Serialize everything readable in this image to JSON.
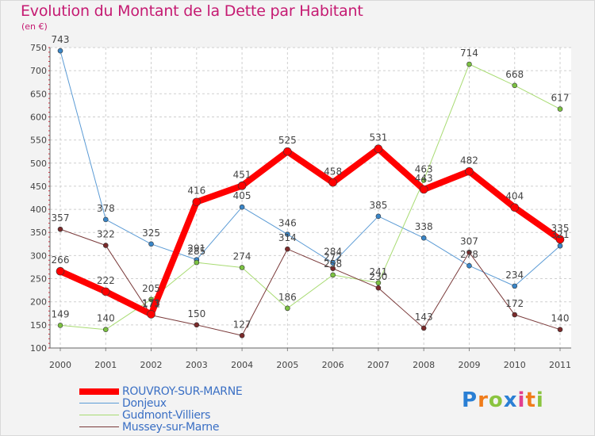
{
  "header": {
    "title": "Evolution du Montant de la Dette par Habitant",
    "unit": "(en €)"
  },
  "brand": {
    "text": "Proxiti",
    "colors": [
      "#2a7fd4",
      "#f07c1a",
      "#8ac43f",
      "#2a7fd4",
      "#e23f8f",
      "#f07c1a",
      "#8ac43f"
    ]
  },
  "chart_data": {
    "type": "line",
    "title": "Evolution du Montant de la Dette par Habitant",
    "ylabel": "(en €)",
    "xlabel": "",
    "ylim": [
      100,
      750
    ],
    "yticks": [
      100,
      150,
      200,
      250,
      300,
      350,
      400,
      450,
      500,
      550,
      600,
      650,
      700,
      750
    ],
    "categories": [
      "2000",
      "2001",
      "2002",
      "2003",
      "2004",
      "2005",
      "2006",
      "2007",
      "2008",
      "2009",
      "2010",
      "2011"
    ],
    "grid": true,
    "legend": "bottom-left",
    "series": [
      {
        "name": "Donjeux",
        "color": "#5b9bd5",
        "pointColor": "#3a86c8",
        "width": 1,
        "values": [
          743,
          378,
          325,
          291,
          405,
          346,
          284,
          385,
          338,
          278,
          234,
          321
        ]
      },
      {
        "name": "Gudmont-Villiers",
        "color": "#a8db72",
        "pointColor": "#7cc242",
        "width": 1,
        "values": [
          149,
          140,
          205,
          285,
          274,
          186,
          258,
          241,
          463,
          714,
          668,
          617
        ]
      },
      {
        "name": "Mussey-sur-Marne",
        "color": "#7a3a3a",
        "pointColor": "#7a2a2a",
        "width": 1,
        "values": [
          357,
          322,
          171,
          150,
          127,
          314,
          272,
          230,
          143,
          307,
          172,
          140
        ]
      },
      {
        "name": "ROUVROY-SUR-MARNE",
        "color": "#ff0000",
        "pointColor": "#ff0000",
        "width": 8,
        "values": [
          266,
          222,
          173,
          416,
          451,
          525,
          458,
          531,
          443,
          482,
          404,
          335
        ]
      }
    ],
    "data_labels": [
      [
        "743",
        "378",
        "325",
        "291",
        "405",
        "346",
        "284",
        "385",
        "338",
        "278",
        "234",
        "321"
      ],
      [
        "149",
        "140",
        "205",
        "285",
        "274",
        "186",
        "258",
        "241",
        "463",
        "714",
        "668",
        "617"
      ],
      [
        "357",
        "322",
        "171",
        "150",
        "127",
        "314",
        "272",
        "230",
        "143",
        "307",
        "172",
        "140"
      ],
      [
        "266",
        "222",
        "173",
        "416",
        "451",
        "525",
        "458",
        "531",
        "443",
        "482",
        "404",
        "335"
      ]
    ]
  },
  "legend": [
    {
      "label": "ROUVROY-SUR-MARNE",
      "color": "#ff0000",
      "thickness": 8
    },
    {
      "label": "Donjeux",
      "color": "#5b9bd5",
      "thickness": 1
    },
    {
      "label": "Gudmont-Villiers",
      "color": "#a8db72",
      "thickness": 1
    },
    {
      "label": "Mussey-sur-Marne",
      "color": "#7a3a3a",
      "thickness": 1
    }
  ]
}
